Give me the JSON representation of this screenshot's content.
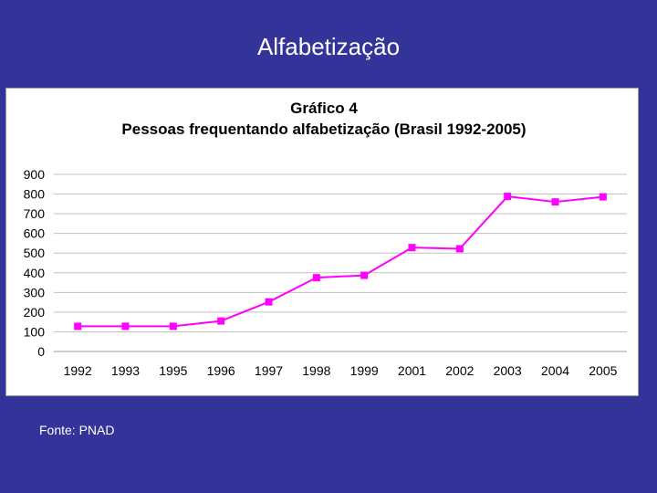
{
  "slide": {
    "title": "Alfabetização",
    "source": "Fonte: PNAD"
  },
  "colors": {
    "background": "#333399",
    "series": "#ff00ff",
    "grid": "#c0c0c0"
  },
  "chart_data": {
    "type": "line",
    "title": "Gráfico 4",
    "subtitle": "Pessoas frequentando alfabetização (Brasil 1992-2005)",
    "xlabel": "",
    "ylabel": "",
    "categories": [
      "1992",
      "1993",
      "1995",
      "1996",
      "1997",
      "1998",
      "1999",
      "2001",
      "2002",
      "2003",
      "2004",
      "2005"
    ],
    "series": [
      {
        "values": [
          128,
          128,
          128,
          155,
          252,
          375,
          387,
          528,
          522,
          788,
          760,
          786
        ],
        "color": "#ff00ff",
        "marker": "square"
      }
    ],
    "ylim": [
      0,
      900
    ],
    "yticks": [
      0,
      100,
      200,
      300,
      400,
      500,
      600,
      700,
      800,
      900
    ],
    "grid": true,
    "legend": "none"
  }
}
